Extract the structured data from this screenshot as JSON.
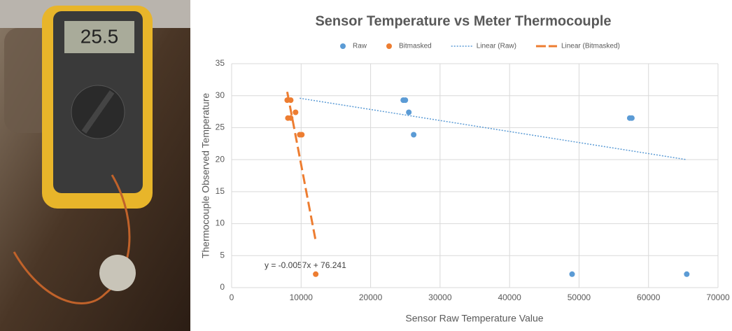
{
  "photo": {
    "meter_display": "25.5"
  },
  "chart_data": {
    "type": "scatter",
    "title": "Sensor Temperature vs Meter Thermocouple",
    "x_label": "Sensor Raw Temperature Value",
    "y_label": "Thermocouple Observed Temperature",
    "xlim": [
      0,
      70000
    ],
    "xticks": [
      0,
      10000,
      20000,
      30000,
      40000,
      50000,
      60000,
      70000
    ],
    "ylim": [
      0,
      35
    ],
    "yticks": [
      0,
      5,
      10,
      15,
      20,
      25,
      30,
      35
    ],
    "grid": true,
    "legend": "top",
    "series": [
      {
        "name": "Raw",
        "color": "#5b9bd5",
        "x": [
          24700,
          25000,
          25500,
          26200,
          57300,
          57600,
          49000,
          65500
        ],
        "values": [
          29.3,
          29.3,
          27.4,
          23.9,
          26.5,
          26.5,
          2.1,
          2.1
        ]
      },
      {
        "name": "Bitmasked",
        "color": "#ed7d31",
        "x": [
          8000,
          8500,
          8100,
          8500,
          9200,
          9800,
          10100,
          12100
        ],
        "values": [
          29.3,
          29.3,
          26.5,
          26.5,
          27.4,
          23.9,
          23.9,
          2.1
        ]
      },
      {
        "name": "Linear (Raw)",
        "type": "trendline",
        "color": "#5b9bd5",
        "x": [
          9800,
          65500
        ],
        "values": [
          29.6,
          20.0
        ]
      },
      {
        "name": "Linear (Bitmasked)",
        "type": "trendline",
        "color": "#ed7d31",
        "x": [
          8000,
          12100
        ],
        "values": [
          30.6,
          7.3
        ]
      }
    ],
    "annotation": "y = -0.0057x + 76.241"
  }
}
